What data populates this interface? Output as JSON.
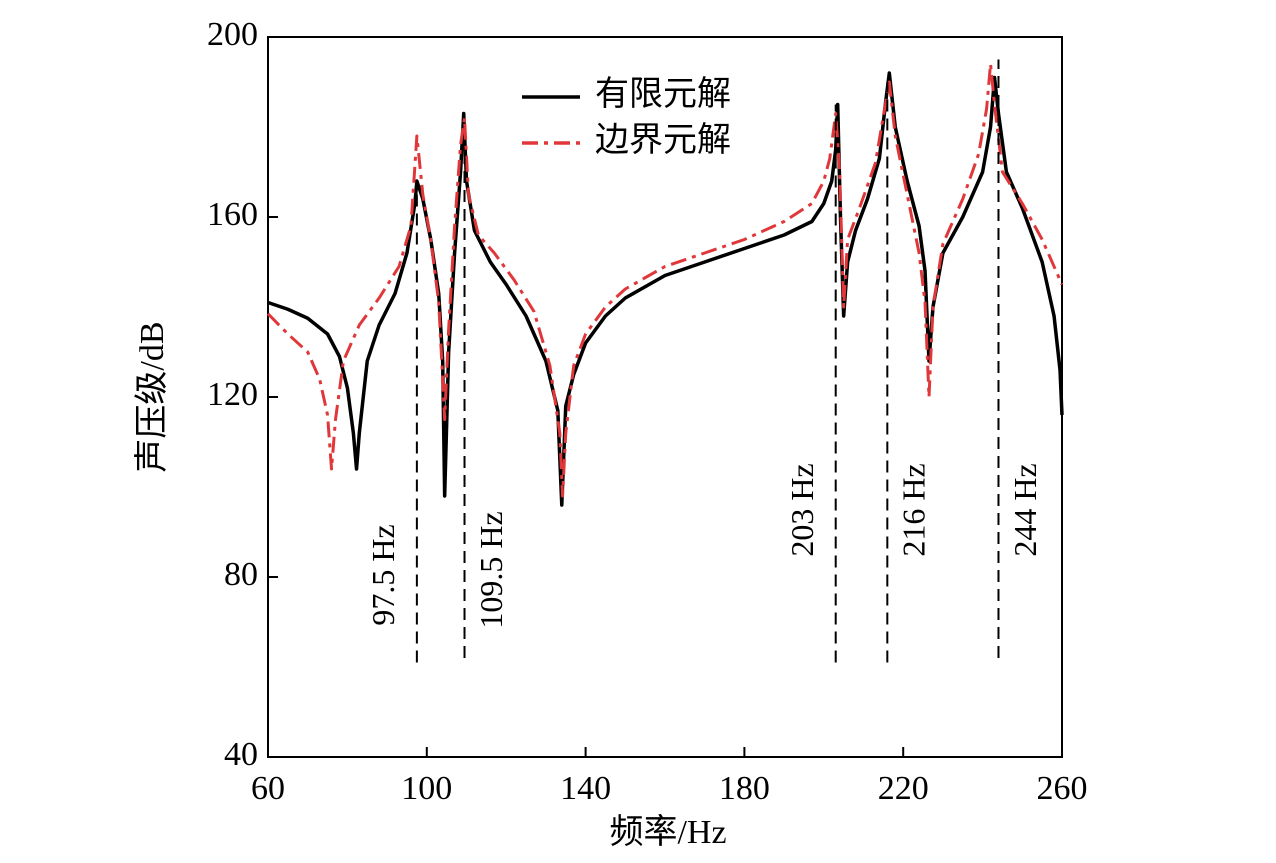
{
  "chart_data": {
    "type": "line",
    "xlabel": "频率/Hz",
    "ylabel": "声压级/dB",
    "xlim": [
      60,
      260
    ],
    "ylim": [
      40,
      200
    ],
    "xticks": [
      60,
      100,
      140,
      180,
      220,
      260
    ],
    "yticks": [
      40,
      80,
      120,
      160,
      200
    ],
    "legend": "top",
    "series": [
      {
        "name": "有限元解",
        "color": "#000000",
        "style": "solid",
        "x": [
          60,
          65,
          70,
          75,
          78,
          80,
          81.5,
          82.3,
          83,
          85,
          88,
          92,
          95,
          97,
          97.5,
          99,
          101,
          103,
          104,
          104.5,
          105.5,
          107,
          108.5,
          109.3,
          110,
          112,
          116,
          120,
          125,
          130,
          133,
          134,
          135,
          137,
          140,
          145,
          150,
          160,
          170,
          180,
          190,
          197,
          200,
          202,
          203,
          203.5,
          204.2,
          205,
          206,
          208,
          211,
          214,
          215.5,
          216.5,
          218,
          221,
          224,
          225.5,
          226.5,
          227.5,
          230,
          235,
          240,
          242,
          243,
          244,
          246,
          250,
          255,
          258,
          259.5,
          260
        ],
        "values": [
          141,
          139.5,
          137.5,
          134,
          129,
          122,
          112,
          104,
          112,
          128,
          136,
          143,
          152,
          163,
          168,
          164,
          155,
          143,
          128,
          98,
          130,
          152,
          170,
          183,
          168,
          157,
          150,
          145,
          138,
          128,
          117,
          96,
          118,
          125,
          132,
          138,
          142,
          147,
          150,
          153,
          156,
          159,
          163,
          168,
          175,
          185,
          160,
          138,
          150,
          157,
          164,
          173,
          185,
          192,
          180,
          168,
          158,
          148,
          128,
          140,
          152,
          160,
          170,
          180,
          191,
          183,
          170,
          162,
          150,
          138,
          126,
          116
        ]
      },
      {
        "name": "边界元解",
        "color": "#e0383a",
        "style": "dashdot",
        "x": [
          60,
          65,
          70,
          73,
          75,
          76,
          77,
          79,
          83,
          88,
          93,
          96,
          97.5,
          99,
          101,
          103,
          104,
          104.5,
          105.5,
          107,
          108.5,
          109.5,
          110.5,
          113,
          117,
          122,
          127,
          131,
          133.5,
          134.2,
          135,
          137,
          140,
          145,
          150,
          160,
          170,
          180,
          190,
          197,
          200,
          201.5,
          203,
          204,
          205,
          206,
          209,
          213,
          215.5,
          216.5,
          218,
          221,
          224,
          225.5,
          226.5,
          227.5,
          230,
          235,
          239,
          241,
          242,
          243,
          245,
          250,
          255,
          260
        ],
        "values": [
          138.5,
          134,
          130,
          124,
          116,
          104,
          115,
          128,
          136,
          142,
          149,
          158,
          178,
          165,
          155,
          141,
          124,
          115,
          135,
          158,
          176,
          182,
          165,
          156,
          152,
          146,
          139,
          127,
          112,
          98,
          112,
          127,
          134,
          140,
          144,
          149,
          152,
          155,
          159,
          163,
          168,
          173,
          183,
          170,
          140,
          155,
          162,
          172,
          185,
          190,
          178,
          165,
          152,
          141,
          120,
          140,
          154,
          164,
          174,
          184,
          194,
          185,
          170,
          163,
          155,
          145
        ]
      }
    ],
    "annotations": [
      {
        "text": "97.5 Hz",
        "x": 97.5,
        "y0": 61,
        "y1": 168
      },
      {
        "text": "109.5 Hz",
        "x": 109.5,
        "y0": 62,
        "y1": 175
      },
      {
        "text": "203 Hz",
        "x": 203,
        "y0": 61,
        "y1": 185
      },
      {
        "text": "216 Hz",
        "x": 216,
        "y0": 61,
        "y1": 190
      },
      {
        "text": "244 Hz",
        "x": 244,
        "y0": 62,
        "y1": 195
      }
    ]
  }
}
